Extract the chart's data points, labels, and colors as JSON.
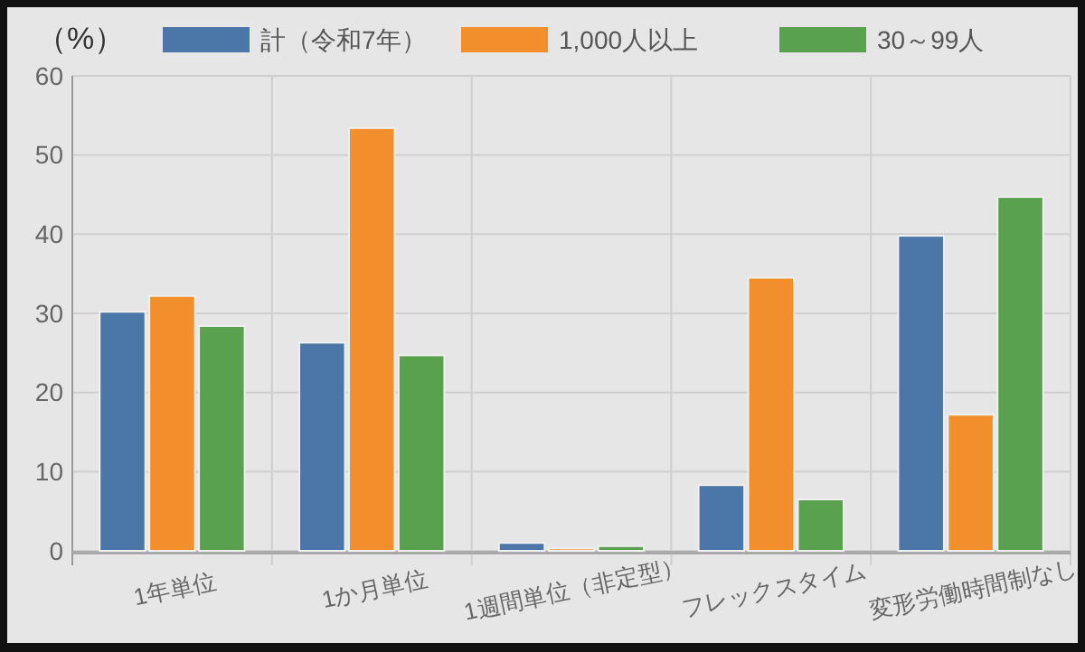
{
  "chart_data": {
    "type": "bar",
    "ylabel": "（%）",
    "categories": [
      "1年単位",
      "1か月単位",
      "1週間単位（非定型）",
      "フレックスタイム",
      "変形労働時間制なし"
    ],
    "series": [
      {
        "name": "計（令和7年）",
        "color": "#4a76a8",
        "values": [
          30.2,
          26.3,
          1.0,
          8.3,
          39.8
        ]
      },
      {
        "name": "1,000人以上",
        "color": "#f28e2b",
        "values": [
          32.2,
          53.4,
          0.3,
          34.5,
          17.2
        ]
      },
      {
        "name": "30～99人",
        "color": "#59a14f",
        "values": [
          28.4,
          24.7,
          0.6,
          6.5,
          44.7
        ]
      }
    ],
    "ylim": [
      0,
      60
    ],
    "yticks": [
      0,
      10,
      20,
      30,
      40,
      50,
      60
    ],
    "grid": true,
    "legend": "top"
  }
}
